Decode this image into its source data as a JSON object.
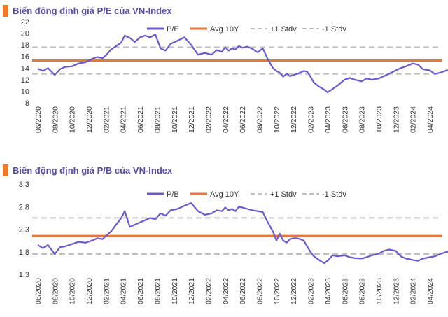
{
  "colors": {
    "series": "#6A5ACD",
    "avg": "#E8753A",
    "stdev": "#BEBEBE",
    "title": "#5B4BA8",
    "title_marker": "#F07C2A",
    "axis_text": "#333333"
  },
  "chart_data": [
    {
      "type": "line",
      "title": "Biến động định giá P/E của VN-Index",
      "legend": [
        "P/E",
        "Avg 10Y",
        "+1 Stdv",
        "-1 Stdv"
      ],
      "legend_position": "top",
      "x_tick_labels": [
        "06/2020",
        "08/2020",
        "10/2020",
        "12/2020",
        "02/2021",
        "04/2021",
        "06/2021",
        "08/2021",
        "10/2021",
        "12/2021",
        "02/2022",
        "04/2022",
        "06/2022",
        "08/2022",
        "10/2022",
        "12/2022",
        "02/2023",
        "04/2023",
        "06/2023",
        "08/2023",
        "10/2023",
        "12/2023",
        "02/2024",
        "04/2024"
      ],
      "y_ticks": [
        "8",
        "10",
        "12",
        "14",
        "16",
        "18",
        "20",
        "22"
      ],
      "ylim": [
        8,
        22
      ],
      "avg": 15.3,
      "plus_1_stdev": 17.6,
      "minus_1_stdev": 13.0,
      "series": [
        {
          "name": "P/E",
          "x": [
            0,
            0.3,
            0.6,
            1.0,
            1.3,
            1.6,
            2.0,
            2.4,
            2.8,
            3.2,
            3.5,
            3.8,
            4.0,
            4.3,
            4.6,
            4.9,
            5.1,
            5.4,
            5.7,
            6.0,
            6.3,
            6.6,
            6.9,
            7.2,
            7.5,
            7.8,
            8.2,
            8.6,
            9.0,
            9.4,
            9.8,
            10.2,
            10.5,
            10.8,
            11.0,
            11.2,
            11.4,
            11.6,
            11.8,
            12.0,
            12.3,
            12.6,
            12.9,
            13.2,
            13.5,
            13.8,
            14.0,
            14.2,
            14.4,
            14.6,
            14.8,
            15.0,
            15.2,
            15.4,
            15.6,
            15.8,
            16.0,
            16.2,
            16.5,
            16.8,
            17.0,
            17.3,
            17.6,
            18.0,
            18.3,
            18.6,
            19.0,
            19.3,
            19.6,
            20.0,
            20.3,
            20.6,
            21.0,
            21.3,
            21.6,
            22.0,
            22.3,
            22.6,
            23.0,
            23.3,
            23.6,
            24.0,
            24.3,
            24.6
          ],
          "values": [
            13.9,
            13.5,
            14.0,
            12.8,
            13.8,
            14.2,
            14.3,
            14.8,
            15.0,
            15.6,
            15.9,
            15.7,
            16.2,
            17.2,
            17.8,
            18.4,
            19.6,
            19.2,
            18.5,
            19.3,
            19.6,
            19.3,
            19.8,
            17.4,
            17.0,
            18.2,
            18.7,
            19.3,
            18.0,
            16.3,
            16.6,
            16.3,
            17.1,
            16.8,
            17.6,
            17.0,
            17.4,
            17.2,
            17.8,
            17.5,
            17.7,
            17.3,
            16.7,
            17.4,
            15.5,
            14.0,
            13.5,
            13.2,
            12.5,
            13.0,
            12.6,
            12.8,
            13.0,
            13.2,
            13.5,
            13.4,
            12.5,
            11.5,
            10.8,
            10.3,
            9.8,
            10.4,
            11.0,
            12.0,
            12.3,
            12.0,
            11.7,
            12.2,
            12.0,
            12.2,
            12.6,
            13.0,
            13.6,
            14.0,
            14.3,
            14.8,
            14.6,
            13.8,
            13.6,
            13.0,
            13.2,
            13.6,
            13.8,
            13.4
          ]
        }
      ]
    },
    {
      "type": "line",
      "title": "Biến động định giá P/B của VN-Index",
      "legend": [
        "P/B",
        "Avg 10Y",
        "+1 Stdv",
        "-1 Stdv"
      ],
      "legend_position": "top",
      "x_tick_labels": [
        "06/2020",
        "08/2020",
        "10/2020",
        "12/2020",
        "02/2021",
        "04/2021",
        "06/2021",
        "08/2021",
        "10/2021",
        "12/2021",
        "02/2022",
        "04/2022",
        "06/2022",
        "08/2022",
        "10/2022",
        "12/2022",
        "02/2023",
        "04/2023",
        "06/2023",
        "08/2023",
        "10/2023",
        "12/2023",
        "02/2024",
        "04/2024"
      ],
      "y_ticks": [
        "1.3",
        "1.8",
        "2.3",
        "2.8",
        "3.3"
      ],
      "ylim": [
        1.3,
        3.3
      ],
      "avg": 2.15,
      "plus_1_stdev": 2.55,
      "minus_1_stdev": 1.75,
      "series": [
        {
          "name": "P/B",
          "x": [
            0,
            0.3,
            0.6,
            1.0,
            1.3,
            1.6,
            2.0,
            2.4,
            2.8,
            3.2,
            3.5,
            3.8,
            4.0,
            4.3,
            4.6,
            4.9,
            5.1,
            5.4,
            5.7,
            6.0,
            6.3,
            6.6,
            6.9,
            7.2,
            7.5,
            7.8,
            8.2,
            8.6,
            9.0,
            9.4,
            9.8,
            10.2,
            10.5,
            10.8,
            11.0,
            11.2,
            11.4,
            11.6,
            11.8,
            12.0,
            12.3,
            12.6,
            12.9,
            13.2,
            13.5,
            13.8,
            14.0,
            14.2,
            14.4,
            14.6,
            14.8,
            15.0,
            15.2,
            15.4,
            15.6,
            15.8,
            16.0,
            16.2,
            16.5,
            16.8,
            17.0,
            17.3,
            17.6,
            18.0,
            18.3,
            18.6,
            19.0,
            19.3,
            19.6,
            20.0,
            20.3,
            20.6,
            21.0,
            21.3,
            21.6,
            22.0,
            22.3,
            22.6,
            23.0,
            23.3,
            23.6,
            24.0,
            24.3,
            24.6
          ],
          "values": [
            1.95,
            1.88,
            1.95,
            1.75,
            1.9,
            1.92,
            1.97,
            2.02,
            2.0,
            2.05,
            2.1,
            2.08,
            2.15,
            2.25,
            2.4,
            2.55,
            2.7,
            2.35,
            2.4,
            2.45,
            2.5,
            2.55,
            2.52,
            2.65,
            2.6,
            2.72,
            2.75,
            2.82,
            2.88,
            2.7,
            2.62,
            2.65,
            2.72,
            2.7,
            2.78,
            2.72,
            2.75,
            2.7,
            2.8,
            2.78,
            2.75,
            2.72,
            2.7,
            2.68,
            2.45,
            2.25,
            2.05,
            2.2,
            2.05,
            2.0,
            2.08,
            2.1,
            2.1,
            2.08,
            2.05,
            1.92,
            1.8,
            1.7,
            1.62,
            1.55,
            1.6,
            1.72,
            1.7,
            1.72,
            1.68,
            1.66,
            1.65,
            1.68,
            1.72,
            1.76,
            1.82,
            1.85,
            1.82,
            1.7,
            1.65,
            1.62,
            1.6,
            1.65,
            1.68,
            1.7,
            1.75,
            1.8,
            1.82,
            1.78
          ]
        }
      ]
    }
  ]
}
